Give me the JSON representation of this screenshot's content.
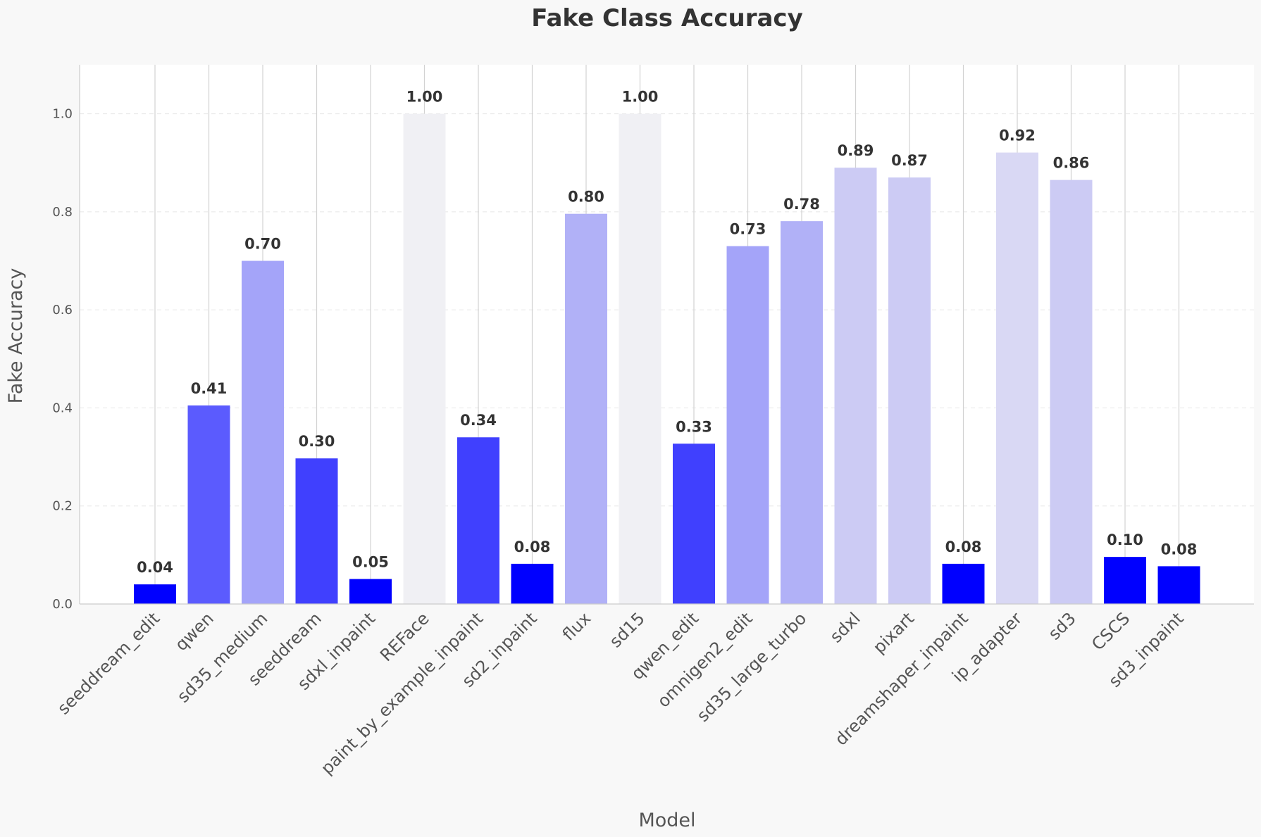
{
  "chart_data": {
    "type": "bar",
    "title": "Fake Class Accuracy",
    "xlabel": "Model",
    "ylabel": "Fake Accuracy",
    "ylim": [
      0,
      1.1
    ],
    "yticks": [
      "0.0",
      "0.2",
      "0.4",
      "0.6",
      "0.8",
      "1.0"
    ],
    "grid": "y-dashed, x-vertical-lines",
    "categories": [
      "seeddream_edit",
      "qwen",
      "sd35_medium",
      "seeddream",
      "sdxl_inpaint",
      "REFace",
      "paint_by_example_inpaint",
      "sd2_inpaint",
      "flux",
      "sd15",
      "qwen_edit",
      "omnigen2_edit",
      "sd35_large_turbo",
      "sdxl",
      "pixart",
      "dreamshaper_inpaint",
      "ip_adapter",
      "sd3",
      "CSCS",
      "sd3_inpaint"
    ],
    "values": [
      0.04,
      0.405,
      0.7,
      0.297,
      0.051,
      1.0,
      0.34,
      0.082,
      0.796,
      1.0,
      0.327,
      0.73,
      0.781,
      0.89,
      0.87,
      0.082,
      0.921,
      0.865,
      0.096,
      0.077
    ],
    "labels": [
      "0.04",
      "0.41",
      "0.70",
      "0.30",
      "0.05",
      "1.00",
      "0.34",
      "0.08",
      "0.80",
      "1.00",
      "0.33",
      "0.73",
      "0.78",
      "0.89",
      "0.87",
      "0.08",
      "0.92",
      "0.86",
      "0.10",
      "0.08"
    ],
    "colors": [
      "#0000ff",
      "#5b5bfe",
      "#a4a4f9",
      "#4040fe",
      "#0000ff",
      "#f0f0f4",
      "#4040fe",
      "#0000ff",
      "#b1b1f7",
      "#f0f0f4",
      "#4040fe",
      "#a4a4f9",
      "#b1b1f7",
      "#cccbf4",
      "#cccbf4",
      "#0000ff",
      "#d9d8f4",
      "#cccbf4",
      "#0000ff",
      "#0000ff"
    ]
  }
}
